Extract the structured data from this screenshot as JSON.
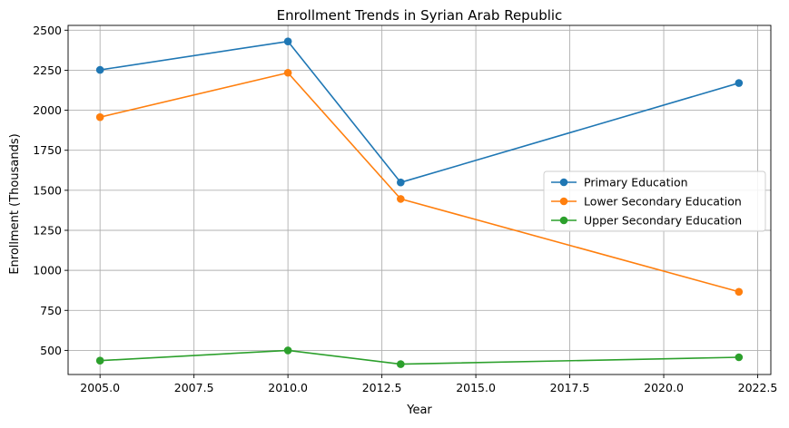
{
  "chart_data": {
    "type": "line",
    "title": "Enrollment Trends in Syrian Arab Republic",
    "xlabel": "Year",
    "ylabel": "Enrollment (Thousands)",
    "x": [
      2005,
      2010,
      2013,
      2022
    ],
    "xlim": [
      2004.15,
      2022.85
    ],
    "ylim": [
      349.4,
      2530.0
    ],
    "xticks": [
      2005.0,
      2007.5,
      2010.0,
      2012.5,
      2015.0,
      2017.5,
      2020.0,
      2022.5
    ],
    "xtick_labels": [
      "2005.0",
      "2007.5",
      "2010.0",
      "2012.5",
      "2015.0",
      "2017.5",
      "2020.0",
      "2022.5"
    ],
    "yticks": [
      500,
      750,
      1000,
      1250,
      1500,
      1750,
      2000,
      2250,
      2500
    ],
    "ytick_labels": [
      "500",
      "750",
      "1000",
      "1250",
      "1500",
      "1750",
      "2000",
      "2250",
      "2500"
    ],
    "grid": true,
    "legend_position": "center-right",
    "series": [
      {
        "name": "Primary Education",
        "color": "#1f77b4",
        "values": [
          2252,
          2430,
          1549,
          2170
        ]
      },
      {
        "name": "Lower Secondary Education",
        "color": "#ff7f0e",
        "values": [
          1957,
          2234,
          1446,
          866
        ]
      },
      {
        "name": "Upper Secondary Education",
        "color": "#2ca02c",
        "values": [
          436,
          500,
          414,
          457
        ]
      }
    ]
  }
}
